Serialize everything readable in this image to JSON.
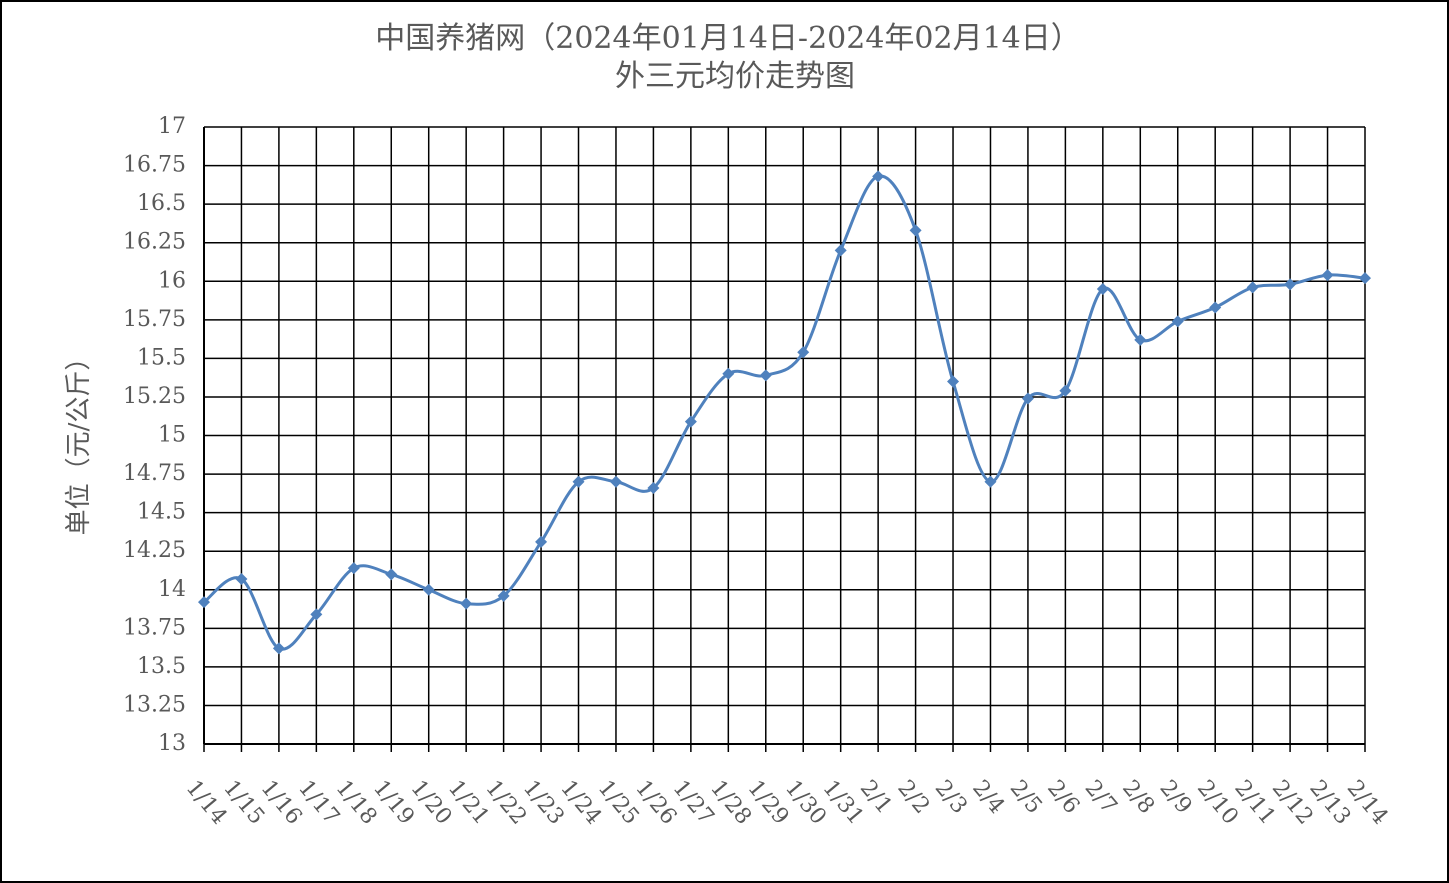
{
  "chart_data": {
    "type": "line",
    "title": "中国养猪网（2024年01月14日-2024年02月14日）",
    "subtitle": "外三元均价走势图",
    "y_label": "单位（元/公斤）",
    "categories": [
      "1/14",
      "1/15",
      "1/16",
      "1/17",
      "1/18",
      "1/19",
      "1/20",
      "1/21",
      "1/22",
      "1/23",
      "1/24",
      "1/25",
      "1/26",
      "1/27",
      "1/28",
      "1/29",
      "1/30",
      "1/31",
      "2/1",
      "2/2",
      "2/3",
      "2/4",
      "2/5",
      "2/6",
      "2/7",
      "2/8",
      "2/9",
      "2/10",
      "2/11",
      "2/12",
      "2/13",
      "2/14"
    ],
    "series": [
      {
        "name": "外三元均价",
        "color": "#4f81bd",
        "values": [
          13.92,
          14.07,
          13.62,
          13.84,
          14.14,
          14.1,
          14.0,
          13.91,
          13.96,
          14.31,
          14.7,
          14.7,
          14.66,
          15.09,
          15.4,
          15.39,
          15.54,
          16.2,
          16.68,
          16.33,
          15.35,
          14.7,
          15.24,
          15.29,
          15.95,
          15.62,
          15.74,
          15.83,
          15.96,
          15.98,
          16.04,
          16.02
        ]
      }
    ],
    "ylim": [
      13,
      17
    ],
    "yticks": [
      13,
      13.25,
      13.5,
      13.75,
      14,
      14.25,
      14.5,
      14.75,
      15,
      15.25,
      15.5,
      15.75,
      16,
      16.25,
      16.5,
      16.75,
      17
    ],
    "grid": true,
    "smooth": true
  }
}
